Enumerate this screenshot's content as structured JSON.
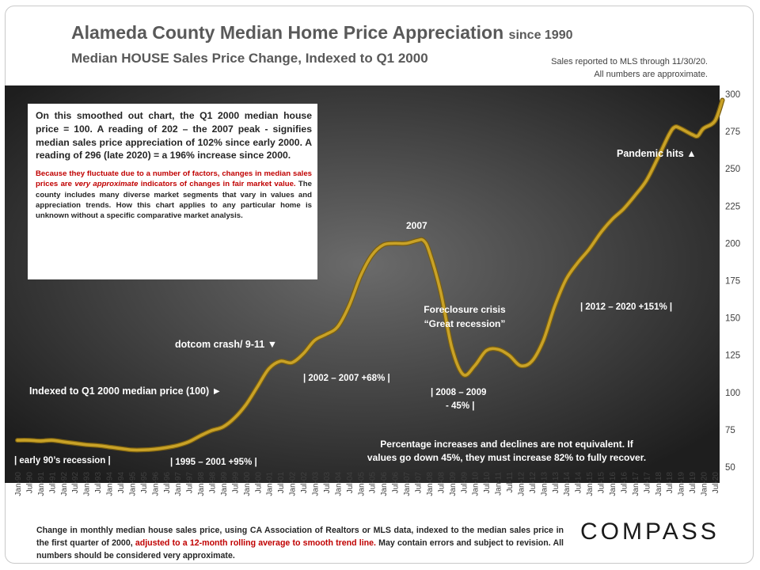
{
  "header": {
    "title": "Alameda County Median Home Price Appreciation",
    "title_suffix": "since 1990",
    "subtitle": "Median HOUSE Sales Price Change, Indexed to Q1 2000",
    "note_line1": "Sales reported to MLS through 11/30/20.",
    "note_line2": "All numbers are approximate."
  },
  "info_box": {
    "paragraph1": "On this smoothed out chart, the Q1 2000 median house price = 100. A reading of 202 – the 2007 peak - signifies median sales price appreciation of 102% since early 2000.  A reading of 296 (late 2020) = a 196% increase since 2000.",
    "paragraph2_red": "Because they fluctuate due to a number of factors, changes in median sales prices are ",
    "paragraph2_italic": "very approximate",
    "paragraph2_red_end": " indicators of changes in fair market value.",
    "paragraph2_rest": " The county includes many diverse market segments that vary in values and appreciation trends. How this chart applies to any particular home is unknown without a specific comparative market analysis."
  },
  "footer": {
    "text_start": "Change in monthly median house sales price, using CA Association of Realtors or MLS data, indexed to the median sales price in the first quarter of 2000, ",
    "text_red": "adjusted to a 12-month rolling average to smooth trend line.",
    "text_end": "  May contain errors and subject to revision. All numbers should be considered very approximate.",
    "logo": "COMPASS"
  },
  "colors": {
    "plot_background_center": "#6b6b6b",
    "plot_background_edge": "#1e1e1e",
    "line": "#c9a227",
    "line_shadow": "#7a5f10",
    "accent_red": "#c00000"
  },
  "chart_data": {
    "type": "line",
    "title": "Alameda County Median Home Price Appreciation since 1990",
    "subtitle": "Median HOUSE Sales Price Change, Indexed to Q1 2000",
    "xlabel": "",
    "ylabel": "",
    "ylim": [
      50,
      300
    ],
    "yticks": [
      50,
      75,
      100,
      125,
      150,
      175,
      200,
      225,
      250,
      275,
      300
    ],
    "y_axis_side": "right",
    "grid": false,
    "xticks": [
      "Jan-90",
      "Jul-90",
      "Jan-91",
      "Jul-91",
      "Jan-92",
      "Jul-92",
      "Jan-93",
      "Jul-93",
      "Jan-94",
      "Jul-94",
      "Jan-95",
      "Jul-95",
      "Jan-96",
      "Jul-96",
      "Jan-97",
      "Jul-97",
      "Jan-98",
      "Jul-98",
      "Jan-99",
      "Jul-99",
      "Jan-00",
      "Jul-00",
      "Jan-01",
      "Jul-01",
      "Jan-02",
      "Jul-02",
      "Jan-03",
      "Jul-03",
      "Jan-04",
      "Jul-04",
      "Jan-05",
      "Jul-05",
      "Jan-06",
      "Jul-06",
      "Jan-07",
      "Jul-07",
      "Jan-08",
      "Jul-08",
      "Jan-09",
      "Jul-09",
      "Jan-10",
      "Jul-10",
      "Jan-11",
      "Jul-11",
      "Jan-12",
      "Jul-12",
      "Jan-13",
      "Jul-13",
      "Jan-14",
      "Jul-14",
      "Jan-15",
      "Jul-15",
      "Jan-16",
      "Jul-16",
      "Jan-17",
      "Jul-17",
      "Jan-18",
      "Jul-18",
      "Jan-19",
      "Jul-19",
      "Jan-20",
      "Jul-20"
    ],
    "series": [
      {
        "points": [
          [
            1990.0,
            68
          ],
          [
            1990.5,
            68
          ],
          [
            1991.0,
            67.5
          ],
          [
            1991.5,
            68
          ],
          [
            1992.0,
            67
          ],
          [
            1992.5,
            66
          ],
          [
            1993.0,
            65
          ],
          [
            1993.5,
            64.5
          ],
          [
            1994.0,
            63.5
          ],
          [
            1994.5,
            62.5
          ],
          [
            1995.0,
            61.5
          ],
          [
            1995.5,
            61.5
          ],
          [
            1996.0,
            62
          ],
          [
            1996.5,
            63
          ],
          [
            1997.0,
            64.5
          ],
          [
            1997.5,
            67
          ],
          [
            1998.0,
            71
          ],
          [
            1998.5,
            74.5
          ],
          [
            1999.0,
            77
          ],
          [
            1999.5,
            83
          ],
          [
            2000.0,
            92
          ],
          [
            2000.5,
            104
          ],
          [
            2001.0,
            116
          ],
          [
            2001.5,
            121
          ],
          [
            2002.0,
            120
          ],
          [
            2002.5,
            126
          ],
          [
            2003.0,
            135
          ],
          [
            2003.5,
            139
          ],
          [
            2004.0,
            144
          ],
          [
            2004.5,
            158
          ],
          [
            2005.0,
            178
          ],
          [
            2005.5,
            192
          ],
          [
            2006.0,
            199
          ],
          [
            2006.5,
            200
          ],
          [
            2007.0,
            200
          ],
          [
            2007.5,
            202
          ],
          [
            2007.75,
            202
          ],
          [
            2008.0,
            195
          ],
          [
            2008.5,
            168
          ],
          [
            2009.0,
            130
          ],
          [
            2009.5,
            112
          ],
          [
            2010.0,
            118
          ],
          [
            2010.5,
            128
          ],
          [
            2011.0,
            129
          ],
          [
            2011.5,
            125
          ],
          [
            2012.0,
            118
          ],
          [
            2012.5,
            121
          ],
          [
            2013.0,
            135
          ],
          [
            2013.5,
            158
          ],
          [
            2014.0,
            176
          ],
          [
            2014.5,
            187
          ],
          [
            2015.0,
            196
          ],
          [
            2015.5,
            207
          ],
          [
            2016.0,
            216
          ],
          [
            2016.5,
            223
          ],
          [
            2017.0,
            232
          ],
          [
            2017.5,
            242
          ],
          [
            2018.0,
            257
          ],
          [
            2018.5,
            273
          ],
          [
            2018.75,
            278
          ],
          [
            2019.0,
            277
          ],
          [
            2019.5,
            273
          ],
          [
            2019.75,
            272
          ],
          [
            2020.0,
            277
          ],
          [
            2020.5,
            282
          ],
          [
            2020.83,
            296
          ]
        ]
      }
    ],
    "annotations": {
      "peak_2007": "2007",
      "pandemic": "Pandemic hits ▲",
      "foreclosure_1": "Foreclosure crisis",
      "foreclosure_2": "“Great recession”",
      "dotcom": "dotcom crash/ 9-11 ▼",
      "indexed": "Indexed to Q1 2000 median price (100) ►",
      "range_2002_2007": "| 2002  – 2007 +68% |",
      "range_2012_2020": "| 2012  – 2020 +151% |",
      "range_2008_2009_a": "| 2008  – 2009",
      "range_2008_2009_b": "- 45% |",
      "early90s": "| early 90’s recession |",
      "range_1995_2001": "| 1995  – 2001 +95% |",
      "pct_note_1": "Percentage increases and declines are not equivalent. If",
      "pct_note_2": "values go down 45%, they must increase 82% to fully recover."
    }
  }
}
